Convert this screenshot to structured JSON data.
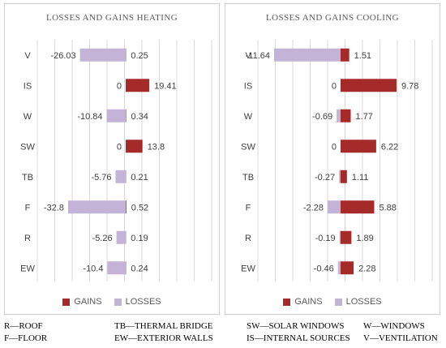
{
  "chart_data": [
    {
      "type": "bar",
      "title": "LOSSES AND GAINS HEATING",
      "categories": [
        "V",
        "IS",
        "W",
        "SW",
        "TB",
        "F",
        "R",
        "EW"
      ],
      "series": [
        {
          "name": "LOSSES",
          "values": [
            -26.03,
            0,
            -10.84,
            0,
            -5.76,
            -32.8,
            -5.26,
            -10.4
          ],
          "labels": [
            "-26.03",
            "0",
            "-10.84",
            "0",
            "-5.76",
            "-32.8",
            "-5.26",
            "-10.4"
          ]
        },
        {
          "name": "GAINS",
          "values": [
            0.25,
            19.41,
            0.34,
            13.8,
            0.21,
            0.52,
            0.19,
            0.24
          ],
          "labels": [
            "0.25",
            "19.41",
            "0.34",
            "13.8",
            "0.21",
            "0.52",
            "0.19",
            "0.24"
          ]
        }
      ],
      "xlim": [
        -35,
        35
      ],
      "grid": true,
      "legend_placement": "bottom"
    },
    {
      "type": "bar",
      "title": "LOSSES AND GAINS COOLING",
      "categories": [
        "V",
        "IS",
        "W",
        "SW",
        "TB",
        "F",
        "R",
        "EW"
      ],
      "series": [
        {
          "name": "LOSSES",
          "values": [
            -11.64,
            0,
            -0.69,
            0,
            -0.27,
            -2.28,
            -0.19,
            -0.46
          ],
          "labels": [
            "-11.64",
            "0",
            "-0.69",
            "0",
            "-0.27",
            "-2.28",
            "-0.19",
            "-0.46"
          ]
        },
        {
          "name": "GAINS",
          "values": [
            1.51,
            9.78,
            1.77,
            6.22,
            1.11,
            5.88,
            1.89,
            2.28
          ],
          "labels": [
            "1.51",
            "9.78",
            "1.77",
            "6.22",
            "1.11",
            "5.88",
            "1.89",
            "2.28"
          ]
        }
      ],
      "xlim": [
        -12,
        12
      ],
      "grid": true,
      "legend_placement": "bottom"
    }
  ],
  "colors": {
    "gains": "#a52a2a",
    "losses": "#c3b3d6",
    "grid": "#d9d9d9",
    "text": "#404040"
  },
  "legend": {
    "gains_label": "GAINS",
    "losses_label": "LOSSES"
  },
  "abbreviations": [
    [
      "R—ROOF",
      "TB—THERMAL BRIDGE",
      "SW—SOLAR WINDOWS",
      "W—WINDOWS"
    ],
    [
      "F—FLOOR",
      "EW—EXTERIOR WALLS",
      "IS—INTERNAL SOURCES",
      "V—VENTILATION"
    ]
  ]
}
